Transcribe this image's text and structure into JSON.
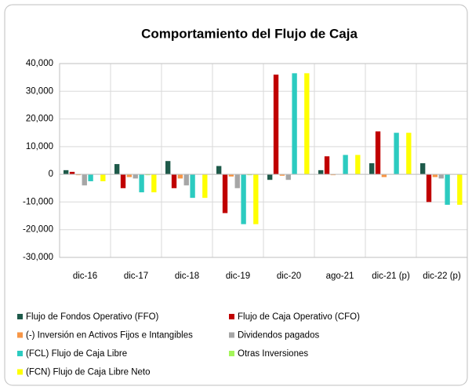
{
  "chart_data": {
    "type": "bar",
    "title": "Comportamiento del Flujo de Caja",
    "categories": [
      "dic-16",
      "dic-17",
      "dic-18",
      "dic-19",
      "dic-20",
      "ago-21",
      "dic-21 (p)",
      "dic-22 (p)"
    ],
    "series": [
      {
        "name": "Flujo de Fondos Operativo (FFO)",
        "color": "#1e5a4a",
        "values": [
          1500,
          3700,
          4800,
          3000,
          -2000,
          1500,
          4000,
          4000
        ]
      },
      {
        "name": "Flujo de Caja Operativo (CFO)",
        "color": "#c00000",
        "values": [
          900,
          -5000,
          -5000,
          -14000,
          36000,
          6500,
          15500,
          -10000
        ]
      },
      {
        "name": "(-) Inversión en Activos Fijos e Intangibles",
        "color": "#f79646",
        "values": [
          -300,
          -1000,
          -1500,
          -800,
          -500,
          -300,
          -1000,
          -1000
        ]
      },
      {
        "name": "Dividendos pagados",
        "color": "#a6a6a6",
        "values": [
          -4000,
          -1500,
          -4000,
          -5000,
          -2000,
          0,
          0,
          -1500
        ]
      },
      {
        "name": "(FCL) Flujo de Caja Libre",
        "color": "#2ccbc0",
        "values": [
          -2500,
          -6500,
          -8500,
          -18000,
          36500,
          7000,
          15000,
          -11000
        ]
      },
      {
        "name": "Otras Inversiones",
        "color": "#a4f55a",
        "values": [
          0,
          -300,
          0,
          -300,
          0,
          0,
          0,
          0
        ]
      },
      {
        "name": "(FCN) Flujo de Caja Libre Neto",
        "color": "#ffff00",
        "values": [
          -2500,
          -6500,
          -8500,
          -18000,
          36500,
          7000,
          15000,
          -11000
        ]
      }
    ],
    "ylim": [
      -30000,
      40000
    ],
    "yticks": [
      {
        "value": -30000,
        "label": "-30,000"
      },
      {
        "value": -20000,
        "label": "-20,000"
      },
      {
        "value": -10000,
        "label": "-10,000"
      },
      0,
      {
        "value": 10000,
        "label": "10,000"
      },
      {
        "value": 20000,
        "label": "20,000"
      },
      {
        "value": 30000,
        "label": "30,000"
      },
      {
        "value": 40000,
        "label": "40,000"
      }
    ],
    "grid": true
  }
}
